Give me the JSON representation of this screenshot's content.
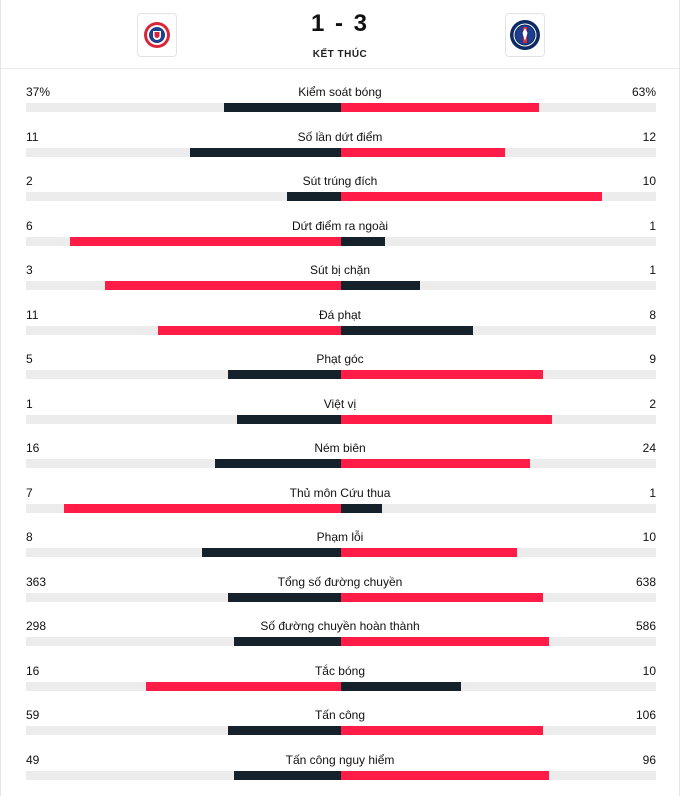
{
  "match": {
    "score": "1 - 3",
    "status": "KẾT THÚC",
    "home_logo": "stade-malherbe-style-crest-icon",
    "away_logo": "paris-saint-germain-crest-icon"
  },
  "colors": {
    "navy": "#15222b",
    "red": "#ff1d48",
    "track": "#ececec"
  },
  "stats": [
    {
      "label": "Kiểm soát bóng",
      "home": "37%",
      "away": "63%",
      "home_level": 0.37,
      "away_level": 0.63,
      "leader": "away"
    },
    {
      "label": "Số lần dứt điểm",
      "home": "11",
      "away": "12",
      "home_level": 0.48,
      "away_level": 0.52,
      "leader": "away"
    },
    {
      "label": "Sút trúng đích",
      "home": "2",
      "away": "10",
      "home_level": 0.17,
      "away_level": 0.83,
      "leader": "away"
    },
    {
      "label": "Dứt điểm ra ngoài",
      "home": "6",
      "away": "1",
      "home_level": 0.86,
      "away_level": 0.14,
      "leader": "home"
    },
    {
      "label": "Sút bị chặn",
      "home": "3",
      "away": "1",
      "home_level": 0.75,
      "away_level": 0.25,
      "leader": "home"
    },
    {
      "label": "Đá phạt",
      "home": "11",
      "away": "8",
      "home_level": 0.58,
      "away_level": 0.42,
      "leader": "home"
    },
    {
      "label": "Phạt góc",
      "home": "5",
      "away": "9",
      "home_level": 0.36,
      "away_level": 0.64,
      "leader": "away"
    },
    {
      "label": "Việt vị",
      "home": "1",
      "away": "2",
      "home_level": 0.33,
      "away_level": 0.67,
      "leader": "away"
    },
    {
      "label": "Ném biên",
      "home": "16",
      "away": "24",
      "home_level": 0.4,
      "away_level": 0.6,
      "leader": "away"
    },
    {
      "label": "Thủ môn Cứu thua",
      "home": "7",
      "away": "1",
      "home_level": 0.88,
      "away_level": 0.13,
      "leader": "home"
    },
    {
      "label": "Phạm lỗi",
      "home": "8",
      "away": "10",
      "home_level": 0.44,
      "away_level": 0.56,
      "leader": "away"
    },
    {
      "label": "Tổng số đường chuyền",
      "home": "363",
      "away": "638",
      "home_level": 0.36,
      "away_level": 0.64,
      "leader": "away"
    },
    {
      "label": "Số đường chuyền hoàn thành",
      "home": "298",
      "away": "586",
      "home_level": 0.34,
      "away_level": 0.66,
      "leader": "away"
    },
    {
      "label": "Tắc bóng",
      "home": "16",
      "away": "10",
      "home_level": 0.62,
      "away_level": 0.38,
      "leader": "home"
    },
    {
      "label": "Tấn công",
      "home": "59",
      "away": "106",
      "home_level": 0.36,
      "away_level": 0.64,
      "leader": "away"
    },
    {
      "label": "Tấn công nguy hiểm",
      "home": "49",
      "away": "96",
      "home_level": 0.34,
      "away_level": 0.66,
      "leader": "away"
    }
  ]
}
